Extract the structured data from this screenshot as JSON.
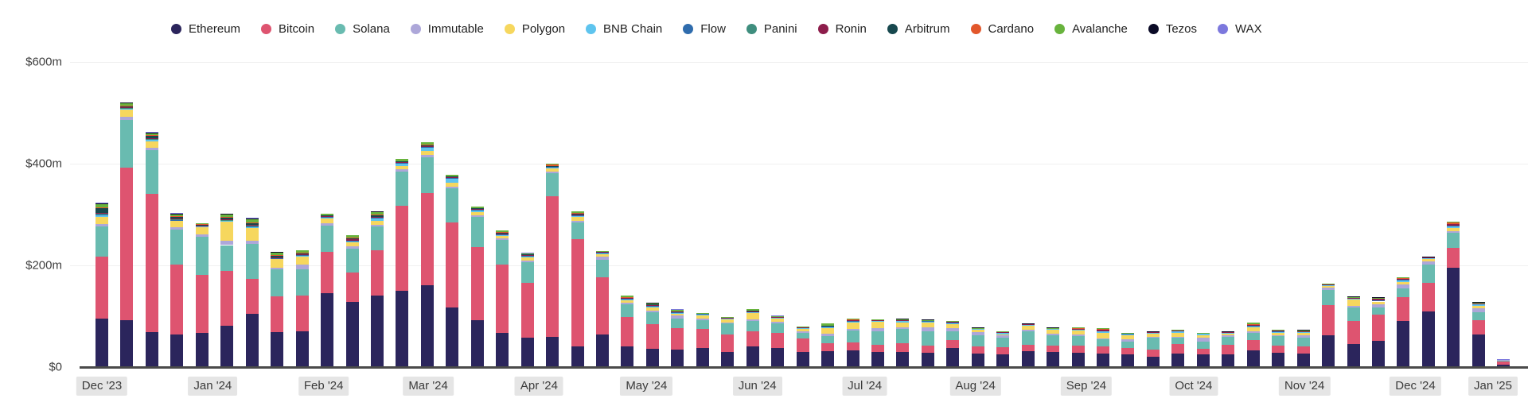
{
  "chart_data": {
    "type": "bar",
    "variant": "stacked",
    "title": "",
    "xlabel": "",
    "ylabel": "",
    "unit": "USD millions",
    "x_unit": "week",
    "weeks": 57,
    "ylim": [
      0,
      640
    ],
    "grid": true,
    "legend_position": "top",
    "y_ticks": [
      {
        "label": "$600m",
        "value": 600
      },
      {
        "label": "$400m",
        "value": 400
      },
      {
        "label": "$200m",
        "value": 200
      },
      {
        "label": "$0",
        "value": 0
      }
    ],
    "month_labels": [
      {
        "label": "Dec '23",
        "week": 0
      },
      {
        "label": "Jan '24",
        "week": 4.43
      },
      {
        "label": "Feb '24",
        "week": 8.86
      },
      {
        "label": "Mar '24",
        "week": 13.04
      },
      {
        "label": "Apr '24",
        "week": 17.47
      },
      {
        "label": "May '24",
        "week": 21.76
      },
      {
        "label": "Jun '24",
        "week": 26.19
      },
      {
        "label": "Jul '24",
        "week": 30.48
      },
      {
        "label": "Aug '24",
        "week": 34.9
      },
      {
        "label": "Sep '24",
        "week": 39.33
      },
      {
        "label": "Oct '24",
        "week": 43.62
      },
      {
        "label": "Nov '24",
        "week": 48.05
      },
      {
        "label": "Dec '24",
        "week": 52.48
      },
      {
        "label": "Jan '25",
        "week": 55.9
      }
    ],
    "series": [
      {
        "name": "Ethereum",
        "color": "#2B255C",
        "values": [
          95,
          92,
          69,
          64,
          67,
          81,
          105,
          69,
          70,
          146,
          128,
          141,
          150,
          161,
          118,
          93,
          68,
          58,
          59,
          41,
          64,
          41,
          36,
          34,
          37,
          30,
          41,
          37,
          30,
          31,
          33,
          30,
          30,
          28,
          37,
          27,
          25,
          31,
          30,
          28,
          27,
          25,
          21,
          27,
          25,
          25,
          33,
          28,
          26,
          63,
          45,
          51,
          91,
          109,
          195,
          64,
          5
        ]
      },
      {
        "name": "Bitcoin",
        "color": "#DE5470",
        "values": [
          123,
          300,
          272,
          137,
          114,
          108,
          69,
          70,
          71,
          80,
          58,
          89,
          167,
          181,
          167,
          143,
          133,
          108,
          277,
          210,
          112,
          57,
          49,
          42,
          38,
          34,
          30,
          31,
          26,
          16,
          16,
          14,
          17,
          14,
          16,
          14,
          14,
          13,
          12,
          14,
          13,
          12,
          14,
          19,
          11,
          19,
          20,
          14,
          15,
          59,
          45,
          52,
          47,
          57,
          39,
          28,
          6
        ]
      },
      {
        "name": "Solana",
        "color": "#69BBB0",
        "values": [
          59,
          95,
          86,
          70,
          76,
          51,
          69,
          53,
          51,
          53,
          47,
          47,
          67,
          70,
          67,
          59,
          49,
          41,
          45,
          33,
          35,
          26,
          23,
          19,
          17,
          22,
          20,
          18,
          12,
          14,
          23,
          27,
          28,
          28,
          18,
          22,
          19,
          26,
          21,
          19,
          14,
          13,
          23,
          12,
          14,
          16,
          14,
          19,
          17,
          30,
          28,
          14,
          17,
          36,
          30,
          16,
          1
        ]
      },
      {
        "name": "Immutable",
        "color": "#ADA7D9",
        "values": [
          5,
          6,
          4,
          4,
          4,
          8,
          6,
          3,
          9,
          4,
          4,
          3,
          5,
          5,
          3,
          3,
          3,
          3,
          3,
          3,
          6,
          3,
          3,
          6,
          3,
          2,
          3,
          3,
          2,
          5,
          3,
          6,
          3,
          8,
          6,
          6,
          4,
          3,
          3,
          3,
          3,
          5,
          2,
          2,
          8,
          2,
          4,
          2,
          5,
          5,
          3,
          7,
          8,
          6,
          4,
          8,
          2
        ]
      },
      {
        "name": "Polygon",
        "color": "#F6D75E",
        "values": [
          13,
          13,
          13,
          12,
          14,
          38,
          25,
          17,
          16,
          10,
          9,
          8,
          7,
          8,
          8,
          7,
          5,
          5,
          7,
          8,
          5,
          5,
          7,
          4,
          6,
          7,
          12,
          6,
          6,
          11,
          13,
          13,
          10,
          9,
          8,
          4,
          2,
          8,
          7,
          8,
          11,
          7,
          6,
          8,
          5,
          5,
          7,
          4,
          5,
          3,
          12,
          5,
          5,
          4,
          6,
          5,
          0
        ]
      },
      {
        "name": "BNB Chain",
        "color": "#5EC4EE",
        "values": [
          3,
          2,
          3,
          2,
          2,
          2,
          2,
          2,
          3,
          2,
          2,
          5,
          5,
          7,
          8,
          3,
          2,
          3,
          2,
          2,
          2,
          2,
          2,
          2,
          2,
          1,
          2,
          2,
          1,
          2,
          2,
          1,
          3,
          3,
          2,
          2,
          4,
          3,
          2,
          2,
          3,
          2,
          2,
          2,
          3,
          1,
          2,
          2,
          2,
          1,
          2,
          2,
          3,
          3,
          4,
          3,
          0
        ]
      },
      {
        "name": "Flow",
        "color": "#2F6CAD",
        "values": [
          2,
          1,
          1,
          1,
          1,
          1,
          1,
          1,
          1,
          1,
          1,
          1,
          1,
          1,
          1,
          1,
          1,
          1,
          1,
          1,
          1,
          1,
          1,
          1,
          1,
          0,
          1,
          1,
          0,
          1,
          1,
          0,
          1,
          1,
          1,
          0,
          0,
          0,
          0,
          0,
          0,
          1,
          0,
          0,
          0,
          0,
          1,
          1,
          0,
          0,
          0,
          1,
          1,
          0,
          1,
          0,
          0
        ]
      },
      {
        "name": "Panini",
        "color": "#3F8E7E",
        "values": [
          1,
          1,
          1,
          1,
          0,
          1,
          1,
          0,
          0,
          0,
          0,
          0,
          0,
          0,
          0,
          0,
          0,
          0,
          0,
          0,
          0,
          0,
          0,
          0,
          0,
          0,
          0,
          0,
          0,
          0,
          0,
          0,
          0,
          0,
          0,
          0,
          0,
          0,
          0,
          0,
          0,
          0,
          0,
          0,
          0,
          0,
          0,
          0,
          0,
          0,
          0,
          0,
          0,
          0,
          0,
          0,
          0
        ]
      },
      {
        "name": "Ronin",
        "color": "#8D1D4B",
        "values": [
          3,
          1,
          2,
          2,
          1,
          1,
          2,
          1,
          1,
          1,
          2,
          2,
          1,
          2,
          1,
          2,
          2,
          1,
          1,
          2,
          1,
          2,
          1,
          2,
          2,
          1,
          1,
          1,
          1,
          1,
          2,
          2,
          1,
          1,
          2,
          1,
          1,
          1,
          1,
          1,
          2,
          2,
          1,
          2,
          1,
          1,
          3,
          2,
          1,
          2,
          1,
          3,
          1,
          1,
          2,
          1,
          1
        ]
      },
      {
        "name": "Arbitrum",
        "color": "#17484E",
        "values": [
          10,
          3,
          4,
          3,
          1,
          3,
          3,
          3,
          2,
          2,
          3,
          3,
          2,
          2,
          2,
          2,
          2,
          2,
          1,
          1,
          0,
          0,
          1,
          0,
          0,
          0,
          1,
          0,
          0,
          1,
          0,
          0,
          0,
          0,
          0,
          0,
          0,
          0,
          0,
          0,
          0,
          0,
          0,
          0,
          0,
          0,
          0,
          0,
          0,
          0,
          0,
          0,
          0,
          0,
          0,
          0,
          0
        ]
      },
      {
        "name": "Cardano",
        "color": "#E2572B",
        "values": [
          1,
          1,
          1,
          1,
          1,
          1,
          1,
          1,
          1,
          0,
          1,
          1,
          0,
          1,
          0,
          0,
          1,
          0,
          2,
          2,
          0,
          1,
          0,
          0,
          0,
          0,
          0,
          0,
          0,
          0,
          1,
          0,
          0,
          0,
          0,
          0,
          0,
          0,
          0,
          2,
          3,
          0,
          0,
          0,
          0,
          0,
          1,
          0,
          0,
          0,
          0,
          0,
          2,
          0,
          3,
          0,
          0
        ]
      },
      {
        "name": "Avalanche",
        "color": "#68B33D",
        "values": [
          5,
          4,
          5,
          4,
          2,
          5,
          8,
          6,
          5,
          3,
          4,
          5,
          4,
          4,
          3,
          3,
          3,
          2,
          2,
          3,
          3,
          2,
          2,
          2,
          1,
          1,
          3,
          1,
          1,
          4,
          2,
          1,
          1,
          1,
          1,
          1,
          1,
          0,
          1,
          1,
          1,
          1,
          1,
          1,
          1,
          0,
          2,
          1,
          1,
          1,
          1,
          2,
          1,
          1,
          2,
          1,
          0
        ]
      },
      {
        "name": "Tezos",
        "color": "#0A0A26",
        "values": [
          2,
          1,
          1,
          1,
          0,
          1,
          1,
          1,
          0,
          0,
          0,
          1,
          0,
          0,
          0,
          0,
          0,
          0,
          0,
          0,
          0,
          0,
          1,
          0,
          0,
          0,
          0,
          0,
          0,
          0,
          0,
          0,
          2,
          1,
          0,
          1,
          0,
          1,
          1,
          0,
          0,
          0,
          1,
          0,
          0,
          1,
          0,
          0,
          1,
          0,
          2,
          1,
          0,
          1,
          0,
          2,
          0
        ]
      },
      {
        "name": "WAX",
        "color": "#7C78DD",
        "values": [
          1,
          0,
          1,
          1,
          0,
          0,
          1,
          0,
          0,
          0,
          0,
          0,
          0,
          0,
          0,
          0,
          0,
          1,
          0,
          0,
          0,
          0,
          0,
          2,
          0,
          0,
          0,
          1,
          0,
          0,
          0,
          0,
          0,
          0,
          0,
          0,
          0,
          0,
          0,
          0,
          0,
          0,
          0,
          0,
          0,
          0,
          0,
          0,
          0,
          0,
          0,
          0,
          0,
          0,
          0,
          0,
          1
        ]
      }
    ]
  }
}
